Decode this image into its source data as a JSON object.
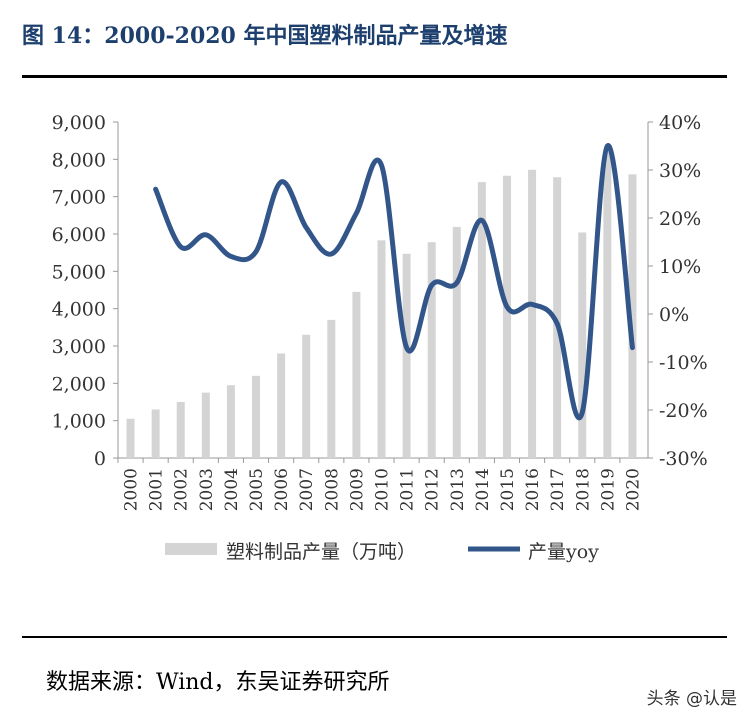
{
  "header": {
    "title": "图 14：2000-2020 年中国塑料制品产量及增速"
  },
  "footer": {
    "source": "数据来源：Wind，东吴证券研究所",
    "watermark": "头条 @认是"
  },
  "chart_data": {
    "type": "bar+line",
    "categories": [
      "2000",
      "2001",
      "2002",
      "2003",
      "2004",
      "2005",
      "2006",
      "2007",
      "2008",
      "2009",
      "2010",
      "2011",
      "2012",
      "2013",
      "2014",
      "2015",
      "2016",
      "2017",
      "2018",
      "2019",
      "2020"
    ],
    "series": [
      {
        "name": "塑料制品产量（万吨）",
        "type": "bar",
        "axis": "left",
        "color": "#d4d4d4",
        "values": [
          1050,
          1300,
          1500,
          1750,
          1950,
          2200,
          2800,
          3300,
          3700,
          4450,
          5830,
          5470,
          5780,
          6190,
          7390,
          7560,
          7720,
          7520,
          6040,
          8190,
          7600
        ]
      },
      {
        "name": "产量yoy",
        "type": "line",
        "axis": "right",
        "color": "#33568a",
        "values": [
          null,
          26,
          14,
          16.5,
          12,
          13,
          27.5,
          18,
          12.5,
          21,
          31,
          -7,
          6,
          6.5,
          19.5,
          1.5,
          2,
          -2,
          -20.5,
          35,
          -7
        ]
      }
    ],
    "left_axis": {
      "min": 0,
      "max": 9000,
      "ticks": [
        "0",
        "1,000",
        "2,000",
        "3,000",
        "4,000",
        "5,000",
        "6,000",
        "7,000",
        "8,000",
        "9,000"
      ]
    },
    "right_axis": {
      "min": -30,
      "max": 40,
      "ticks": [
        "-30%",
        "-20%",
        "-10%",
        "0%",
        "10%",
        "20%",
        "30%",
        "40%"
      ]
    },
    "legend": {
      "position": "bottom"
    }
  }
}
